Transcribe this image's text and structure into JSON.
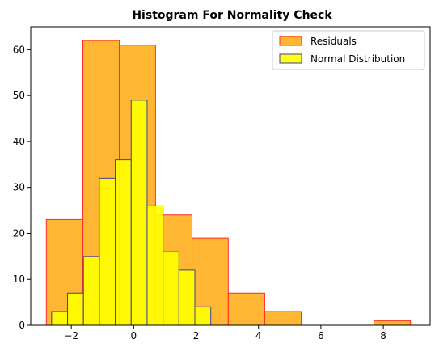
{
  "chart_data": {
    "type": "bar",
    "title": "Histogram For Normality Check",
    "xlabel": "",
    "ylabel": "",
    "xlim": [
      -3.3,
      9.5
    ],
    "ylim": [
      0,
      65
    ],
    "xticks": [
      -2,
      0,
      2,
      4,
      6,
      8
    ],
    "xtick_labels": [
      "−2",
      "0",
      "2",
      "4",
      "6",
      "8"
    ],
    "yticks": [
      0,
      10,
      20,
      30,
      40,
      50,
      60
    ],
    "ytick_labels": [
      "0",
      "10",
      "20",
      "30",
      "40",
      "50",
      "60"
    ],
    "grid": false,
    "legend_position": "top-right",
    "series": [
      {
        "name": "Residuals",
        "color": "#ffa500",
        "edge_color": "#ff2a2a",
        "bins": [
          {
            "x0": -2.8,
            "x1": -1.63,
            "count": 23
          },
          {
            "x0": -1.63,
            "x1": -0.46,
            "count": 62
          },
          {
            "x0": -0.46,
            "x1": 0.7,
            "count": 61
          },
          {
            "x0": 0.7,
            "x1": 1.87,
            "count": 24
          },
          {
            "x0": 1.87,
            "x1": 3.03,
            "count": 19
          },
          {
            "x0": 3.03,
            "x1": 4.2,
            "count": 7
          },
          {
            "x0": 4.2,
            "x1": 5.37,
            "count": 3
          },
          {
            "x0": 5.37,
            "x1": 6.53,
            "count": 0
          },
          {
            "x0": 6.53,
            "x1": 7.7,
            "count": 0
          },
          {
            "x0": 7.7,
            "x1": 8.87,
            "count": 1
          }
        ]
      },
      {
        "name": "Normal Distribution",
        "color": "#ffff00",
        "edge_color": "#3f3f9f",
        "bins": [
          {
            "x0": -2.63,
            "x1": -2.12,
            "count": 3
          },
          {
            "x0": -2.12,
            "x1": -1.61,
            "count": 7
          },
          {
            "x0": -1.61,
            "x1": -1.1,
            "count": 15
          },
          {
            "x0": -1.1,
            "x1": -0.59,
            "count": 32
          },
          {
            "x0": -0.59,
            "x1": -0.08,
            "count": 36
          },
          {
            "x0": -0.08,
            "x1": 0.43,
            "count": 49
          },
          {
            "x0": 0.43,
            "x1": 0.94,
            "count": 26
          },
          {
            "x0": 0.94,
            "x1": 1.45,
            "count": 16
          },
          {
            "x0": 1.45,
            "x1": 1.96,
            "count": 12
          },
          {
            "x0": 1.96,
            "x1": 2.47,
            "count": 4
          }
        ]
      }
    ]
  }
}
